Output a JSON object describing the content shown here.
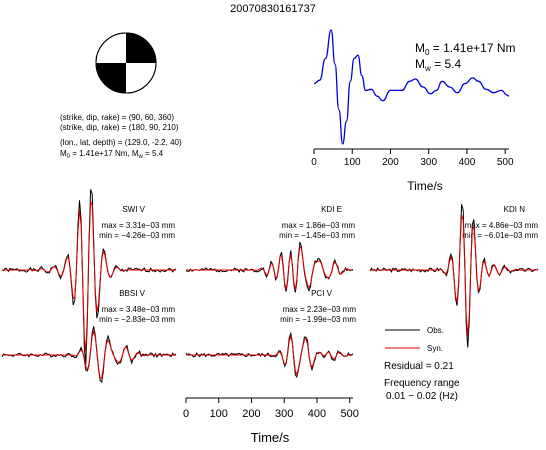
{
  "event_id": "20070830161737",
  "focal_mechanism": {
    "plane1": "(strike, dip, rake) = (90, 60, 360)",
    "plane2": "(strike, dip, rake) = (180, 90, 210)",
    "location": "(lon., lat, depth) = (129.0, -2.2, 40)",
    "moment": "M",
    "moment_rest": " = 1.41e+17 Nm, M",
    "mw_rest": " = 5.4",
    "sub0": "0",
    "subw": "w"
  },
  "stf": {
    "m0_label": "M",
    "m0_sub": "0",
    "m0_value": " = 1.41e+17 Nm",
    "mw_label": "M",
    "mw_sub": "w",
    "mw_value": " = 5.4",
    "xlabel": "Time/s",
    "ticks": [
      "0",
      "100",
      "200",
      "300",
      "400",
      "500"
    ]
  },
  "waveforms": [
    {
      "station": "SWI V",
      "max": "max = 3.31e−03 mm",
      "min": "min = −4.26e−03 mm"
    },
    {
      "station": "KDI E",
      "max": "max = 1.86e−03 mm",
      "min": "min = −1.45e−03 mm"
    },
    {
      "station": "KDI N",
      "max": "max = 4.86e−03 mm",
      "min": "min = −6.01e−03 mm"
    },
    {
      "station": "BBSI V",
      "max": "max = 3.48e−03 mm",
      "min": "min = −2.83e−03 mm"
    },
    {
      "station": "PCI V",
      "max": "max = 2.23e−03 mm",
      "min": "min = −1.99e−03 mm"
    }
  ],
  "legend": {
    "obs": "Obs.",
    "syn": "Syn.",
    "residual": "Residual = 0.21",
    "freq_label": "Frequency range",
    "freq_value": "0.01 − 0.02 (Hz)"
  },
  "bottom_axis": {
    "xlabel": "Time/s",
    "ticks": [
      "0",
      "100",
      "200",
      "300",
      "400",
      "500"
    ]
  },
  "colors": {
    "stf_line": "#0000dd",
    "obs_line": "#000000",
    "syn_line": "#dd0000"
  },
  "chart_data": [
    {
      "type": "line",
      "title": "",
      "xlabel": "Time/s",
      "ylabel": "",
      "xlim": [
        0,
        510
      ],
      "ylim": [
        0,
        1
      ],
      "series": [
        {
          "x": [
            0,
            15,
            30,
            45,
            55,
            65,
            75,
            85,
            95,
            105,
            115,
            125,
            135,
            150,
            165,
            180,
            200,
            215,
            230,
            250,
            265,
            285,
            305,
            320,
            335,
            355,
            375,
            395,
            415,
            430,
            450,
            470,
            490,
            505,
            510
          ],
          "values": [
            0.53,
            0.56,
            0.75,
            1.0,
            0.7,
            0.3,
            0.0,
            0.2,
            0.55,
            0.75,
            0.78,
            0.6,
            0.47,
            0.48,
            0.42,
            0.38,
            0.47,
            0.47,
            0.47,
            0.55,
            0.57,
            0.5,
            0.44,
            0.47,
            0.55,
            0.5,
            0.45,
            0.53,
            0.58,
            0.55,
            0.48,
            0.45,
            0.47,
            0.43,
            0.42
          ]
        }
      ]
    },
    {
      "type": "line",
      "title": "",
      "xlabel": "Time/s",
      "ylabel": "",
      "xlim": [
        0,
        510
      ],
      "series": [
        {
          "name": "Obs.",
          "station": "SWI V"
        },
        {
          "name": "Syn.",
          "station": "SWI V"
        }
      ]
    }
  ]
}
